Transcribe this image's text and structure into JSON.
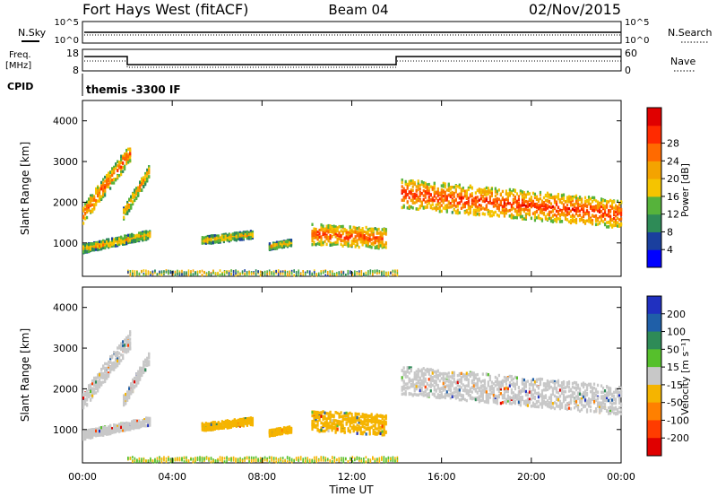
{
  "header": {
    "station": "Fort Hays West (fitACF)",
    "beam": "Beam 04",
    "date": "02/Nov/2015"
  },
  "top_panels": {
    "nsky_label": "N.Sky",
    "nsearch_label": "N.Search",
    "left_ticks": [
      "10^5",
      "10^0"
    ],
    "right_ticks": [
      "10^5",
      "10^0"
    ],
    "freq_label_1": "Freq.",
    "freq_label_2": "[MHz]",
    "freq_ticks": [
      "18",
      "8"
    ],
    "nave_label": "Nave",
    "nave_ticks": [
      "60",
      "0"
    ],
    "cpid_label": "CPID",
    "cpid_text": "themis -3300 IF"
  },
  "chart_data": [
    {
      "type": "heatmap",
      "name": "power",
      "ylabel": "Slant Range [km]",
      "xlabel": "",
      "ylim": [
        180,
        4500
      ],
      "y_ticks": [
        "1000",
        "2000",
        "3000",
        "4000"
      ],
      "colorbar_label": "Power [dB]",
      "colorbar_ticks": [
        "4",
        "8",
        "12",
        "16",
        "20",
        "24",
        "28"
      ],
      "colorbar_colors": [
        "#0000ff",
        "#1a3f9e",
        "#2e8b57",
        "#56b33b",
        "#f5c400",
        "#f4a300",
        "#ff6a00",
        "#ff2a00",
        "#e00000"
      ],
      "regions": [
        {
          "t0": 0.0,
          "t1": 2.1,
          "r_start": 1700,
          "r_end": 3200,
          "w": 450,
          "level": 0.6
        },
        {
          "t0": 1.8,
          "t1": 3.0,
          "r_start": 1700,
          "r_end": 2800,
          "w": 300,
          "level": 0.45
        },
        {
          "t0": 0.0,
          "t1": 3.0,
          "r_start": 850,
          "r_end": 1200,
          "w": 200,
          "level": 0.35
        },
        {
          "t0": 5.3,
          "t1": 7.6,
          "r_start": 1050,
          "r_end": 1200,
          "w": 180,
          "level": 0.3
        },
        {
          "t0": 8.3,
          "t1": 9.3,
          "r_start": 900,
          "r_end": 1000,
          "w": 150,
          "level": 0.3
        },
        {
          "t0": 10.2,
          "t1": 13.5,
          "r_start": 1200,
          "r_end": 1100,
          "w": 500,
          "level": 0.65
        },
        {
          "t0": 14.2,
          "t1": 24.0,
          "r_start": 2200,
          "r_end": 1700,
          "w": 700,
          "level": 0.7
        }
      ],
      "near_range": {
        "t0": 2.0,
        "t1": 14.0,
        "r": 250,
        "w": 120,
        "level": 0.4
      }
    },
    {
      "type": "heatmap",
      "name": "velocity",
      "ylabel": "Slant Range [km]",
      "xlabel": "Time UT",
      "ylim": [
        180,
        4500
      ],
      "xlim": [
        0,
        24
      ],
      "x_ticks": [
        "00:00",
        "04:00",
        "08:00",
        "12:00",
        "16:00",
        "20:00",
        "00:00"
      ],
      "y_ticks": [
        "1000",
        "2000",
        "3000",
        "4000"
      ],
      "colorbar_label": "Velocity [m s⁻¹]",
      "colorbar_ticks": [
        "200",
        "100",
        "50",
        "15",
        "-15",
        "-50",
        "-100",
        "-200"
      ],
      "colorbar_colors": [
        "#2030c0",
        "#1f5fa8",
        "#2e8b57",
        "#56c02c",
        "#c8c8c8",
        "#f5b400",
        "#ff8000",
        "#ff3c00",
        "#e00000"
      ],
      "regions": [
        {
          "t0": 0.0,
          "t1": 2.1,
          "r_start": 1700,
          "r_end": 3200,
          "w": 450,
          "color": "#c8c8c8"
        },
        {
          "t0": 1.8,
          "t1": 3.0,
          "r_start": 1700,
          "r_end": 2800,
          "w": 300,
          "color": "#c8c8c8"
        },
        {
          "t0": 0.0,
          "t1": 3.0,
          "r_start": 850,
          "r_end": 1200,
          "w": 200,
          "color": "#c8c8c8"
        },
        {
          "t0": 5.3,
          "t1": 7.6,
          "r_start": 1050,
          "r_end": 1200,
          "w": 180,
          "color": "#f5b400"
        },
        {
          "t0": 8.3,
          "t1": 9.3,
          "r_start": 900,
          "r_end": 1000,
          "w": 150,
          "color": "#f5b400"
        },
        {
          "t0": 10.2,
          "t1": 13.5,
          "r_start": 1200,
          "r_end": 1100,
          "w": 500,
          "color": "#f5b400"
        },
        {
          "t0": 14.2,
          "t1": 24.0,
          "r_start": 2200,
          "r_end": 1700,
          "w": 700,
          "color": "#c8c8c8"
        }
      ]
    }
  ]
}
